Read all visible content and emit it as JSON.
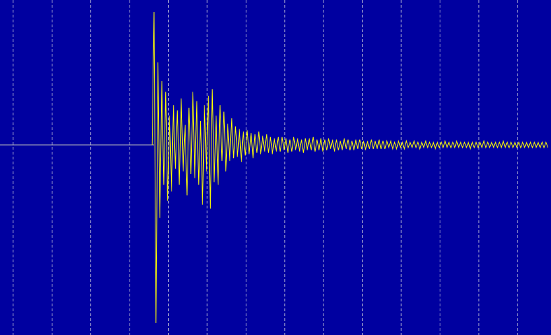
{
  "chart_data": {
    "type": "line",
    "title": "",
    "xlabel": "",
    "ylabel": "",
    "xlim": [
      0,
      14.2
    ],
    "ylim": [
      -1.43,
      1.09
    ],
    "grid": "vertical-dashed",
    "grid_x": [
      0.34,
      1.34,
      2.34,
      3.34,
      4.34,
      5.34,
      6.34,
      7.34,
      8.34,
      9.34,
      10.34,
      11.34,
      12.34,
      13.34
    ],
    "colors": {
      "background": "#0000a0",
      "grid": "#c8c8d8",
      "trace": "#ffff00",
      "baseline": "#d8d8c0"
    },
    "baseline": {
      "x": [
        0,
        3.97
      ],
      "y": 0
    },
    "series": [
      {
        "x_start": 3.97,
        "dt": 0.05,
        "y": [
          1.0,
          -1.34,
          0.62,
          -0.55,
          0.48,
          -0.3,
          0.4,
          -0.42,
          0.22,
          -0.35,
          0.3,
          -0.18,
          0.26,
          -0.3,
          0.35,
          -0.2,
          0.15,
          -0.38,
          0.28,
          -0.22,
          0.4,
          -0.25,
          0.33,
          -0.3,
          0.18,
          -0.45,
          0.3,
          -0.2,
          0.37,
          -0.48,
          0.42,
          -0.28,
          0.22,
          -0.3,
          0.3,
          -0.12,
          0.25,
          -0.2,
          0.16,
          -0.12,
          0.2,
          -0.1,
          0.14,
          -0.09,
          0.12,
          -0.13,
          0.1,
          -0.08,
          0.11,
          -0.07,
          0.09,
          -0.1,
          0.08,
          -0.06,
          0.1,
          -0.07,
          0.07,
          -0.05,
          0.08,
          -0.06,
          0.06,
          -0.07,
          0.05,
          -0.05,
          0.06,
          -0.05,
          0.06,
          -0.04,
          0.05,
          -0.06,
          0.04,
          -0.05,
          0.06,
          -0.04,
          0.05,
          -0.05,
          0.04,
          -0.06,
          0.05,
          -0.04,
          0.05,
          -0.04,
          0.06,
          -0.05,
          0.04,
          -0.04,
          0.05,
          -0.05,
          0.04,
          -0.04,
          0.05,
          -0.03,
          0.04,
          -0.05,
          0.04,
          -0.04,
          0.03,
          -0.04,
          0.05,
          -0.03,
          0.04,
          -0.04,
          0.03,
          -0.04,
          0.04,
          -0.03,
          0.04,
          -0.03,
          0.03,
          -0.04,
          0.03,
          -0.03,
          0.04,
          -0.03,
          0.03,
          -0.03,
          0.04,
          -0.03,
          0.03,
          -0.03,
          0.03,
          -0.02,
          0.03,
          -0.03,
          0.02,
          -0.03,
          0.03,
          -0.02,
          0.02,
          -0.03,
          0.03,
          -0.02,
          0.02,
          -0.02,
          0.03,
          -0.02,
          0.02,
          -0.03,
          0.02,
          -0.02,
          0.03,
          -0.02,
          0.02,
          -0.02,
          0.02,
          -0.03,
          0.02,
          -0.02,
          0.02,
          -0.02,
          0.03,
          -0.02,
          0.02,
          -0.02,
          0.02,
          -0.02,
          0.03,
          -0.02,
          0.02,
          -0.02,
          0.02,
          -0.02,
          0.02,
          -0.03,
          0.02,
          -0.02,
          0.02,
          -0.02,
          0.02,
          -0.02,
          0.03,
          -0.02,
          0.02,
          -0.02,
          0.02,
          -0.02,
          0.02,
          -0.02,
          0.02,
          -0.02,
          0.03,
          -0.02,
          0.02,
          -0.02,
          0.02,
          -0.02,
          0.02,
          -0.02,
          0.02,
          -0.02,
          0.02,
          -0.02,
          0.02,
          -0.02,
          0.02,
          -0.02,
          0.02,
          -0.02,
          0.02,
          -0.02,
          0.02,
          -0.02,
          0.02,
          -0.02
        ]
      }
    ]
  }
}
